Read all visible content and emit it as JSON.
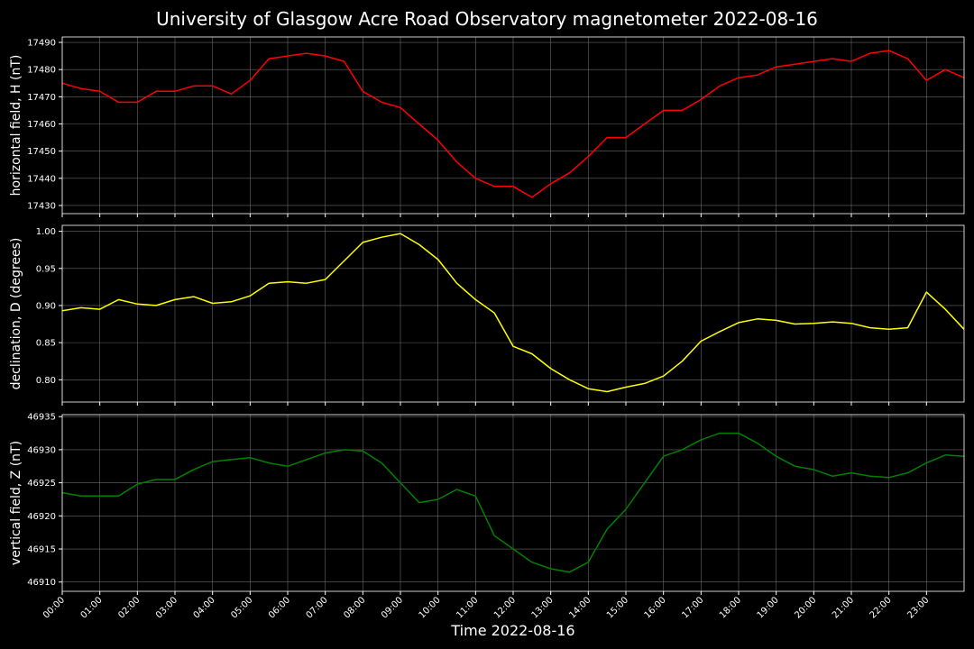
{
  "chart_data": [
    {
      "type": "line",
      "title": "University of Glasgow Acre Road Observatory magnetometer 2022-08-16",
      "ylabel": "horizontal field, H (nT)",
      "ylim": [
        17427,
        17492
      ],
      "yticks": [
        "17430",
        "17440",
        "17450",
        "17460",
        "17470",
        "17480",
        "17490"
      ],
      "color": "#ff0000",
      "grid": true,
      "series": [
        {
          "x": [
            0,
            0.5,
            1,
            1.5,
            2,
            2.5,
            3,
            3.5,
            4,
            4.5,
            5,
            5.5,
            6,
            6.5,
            7,
            7.5,
            8,
            8.5,
            9,
            9.5,
            10,
            10.5,
            11,
            11.5,
            12,
            12.5,
            13,
            13.5,
            14,
            14.5,
            15,
            15.5,
            16,
            16.5,
            17,
            17.5,
            18,
            18.5,
            19,
            19.5,
            20,
            20.5,
            21,
            21.5,
            22,
            22.5,
            23,
            23.5,
            24
          ],
          "y": [
            17475,
            17473,
            17472,
            17468,
            17468,
            17472,
            17472,
            17474,
            17474,
            17471,
            17476,
            17484,
            17485,
            17486,
            17485,
            17483,
            17472,
            17468,
            17466,
            17460,
            17454,
            17446,
            17440,
            17437,
            17437,
            17433,
            17438,
            17442,
            17448,
            17455,
            17455,
            17460,
            17465,
            17465,
            17469,
            17474,
            17477,
            17478,
            17481,
            17482,
            17483,
            17484,
            17483,
            17486,
            17487,
            17484,
            17476,
            17480,
            17477
          ]
        }
      ]
    },
    {
      "type": "line",
      "ylabel": "declination, D (degrees)",
      "ylim": [
        0.77,
        1.008
      ],
      "yticks": [
        "0.80",
        "0.85",
        "0.90",
        "0.95",
        "1.00"
      ],
      "color": "#ffff00",
      "grid": true,
      "series": [
        {
          "x": [
            0,
            0.5,
            1,
            1.5,
            2,
            2.5,
            3,
            3.5,
            4,
            4.5,
            5,
            5.5,
            6,
            6.5,
            7,
            7.5,
            8,
            8.5,
            9,
            9.5,
            10,
            10.5,
            11,
            11.5,
            12,
            12.5,
            13,
            13.5,
            14,
            14.5,
            15,
            15.5,
            16,
            16.5,
            17,
            17.5,
            18,
            18.5,
            19,
            19.5,
            20,
            20.5,
            21,
            21.5,
            22,
            22.5,
            23,
            23.5,
            24
          ],
          "y": [
            0.893,
            0.897,
            0.895,
            0.908,
            0.902,
            0.9,
            0.908,
            0.912,
            0.903,
            0.905,
            0.913,
            0.93,
            0.932,
            0.93,
            0.935,
            0.96,
            0.985,
            0.992,
            0.997,
            0.982,
            0.962,
            0.93,
            0.908,
            0.89,
            0.845,
            0.835,
            0.815,
            0.8,
            0.788,
            0.784,
            0.79,
            0.795,
            0.805,
            0.825,
            0.852,
            0.865,
            0.877,
            0.882,
            0.88,
            0.875,
            0.876,
            0.878,
            0.876,
            0.87,
            0.868,
            0.87,
            0.918,
            0.895,
            0.868
          ]
        }
      ]
    },
    {
      "type": "line",
      "ylabel": "vertical field, Z (nT)",
      "ylim": [
        46908.6,
        46935.3
      ],
      "yticks": [
        "46910",
        "46915",
        "46920",
        "46925",
        "46930",
        "46935"
      ],
      "color": "#008000",
      "grid": true,
      "series": [
        {
          "x": [
            0,
            0.5,
            1,
            1.5,
            2,
            2.5,
            3,
            3.5,
            4,
            4.5,
            5,
            5.5,
            6,
            6.5,
            7,
            7.5,
            8,
            8.5,
            9,
            9.5,
            10,
            10.5,
            11,
            11.5,
            12,
            12.5,
            13,
            13.5,
            14,
            14.5,
            15,
            15.5,
            16,
            16.5,
            17,
            17.5,
            18,
            18.5,
            19,
            19.5,
            20,
            20.5,
            21,
            21.5,
            22,
            22.5,
            23,
            23.5,
            24
          ],
          "y": [
            46923.5,
            46923,
            46923,
            46923,
            46924.8,
            46925.5,
            46925.5,
            46927,
            46928.2,
            46928.5,
            46928.8,
            46928,
            46927.5,
            46928.5,
            46929.5,
            46930,
            46929.8,
            46928,
            46925,
            46922,
            46922.5,
            46924,
            46923,
            46917,
            46915,
            46913,
            46912,
            46911.5,
            46913,
            46918,
            46921,
            46925,
            46929,
            46930,
            46931.5,
            46932.5,
            46932.5,
            46931,
            46929,
            46927.5,
            46927,
            46926,
            46926.5,
            46926,
            46925.8,
            46926.5,
            46928,
            46929.2,
            46929
          ]
        }
      ]
    }
  ],
  "x_axis": {
    "label": "Time 2022-08-16",
    "xlim": [
      0,
      24
    ],
    "ticks": [
      "00:00",
      "01:00",
      "02:00",
      "03:00",
      "04:00",
      "05:00",
      "06:00",
      "07:00",
      "08:00",
      "09:00",
      "10:00",
      "11:00",
      "12:00",
      "13:00",
      "14:00",
      "15:00",
      "16:00",
      "17:00",
      "18:00",
      "19:00",
      "20:00",
      "21:00",
      "22:00",
      "23:00"
    ]
  },
  "colors": {
    "background": "#000000",
    "axes": "#ffffff",
    "grid": "#808080"
  }
}
